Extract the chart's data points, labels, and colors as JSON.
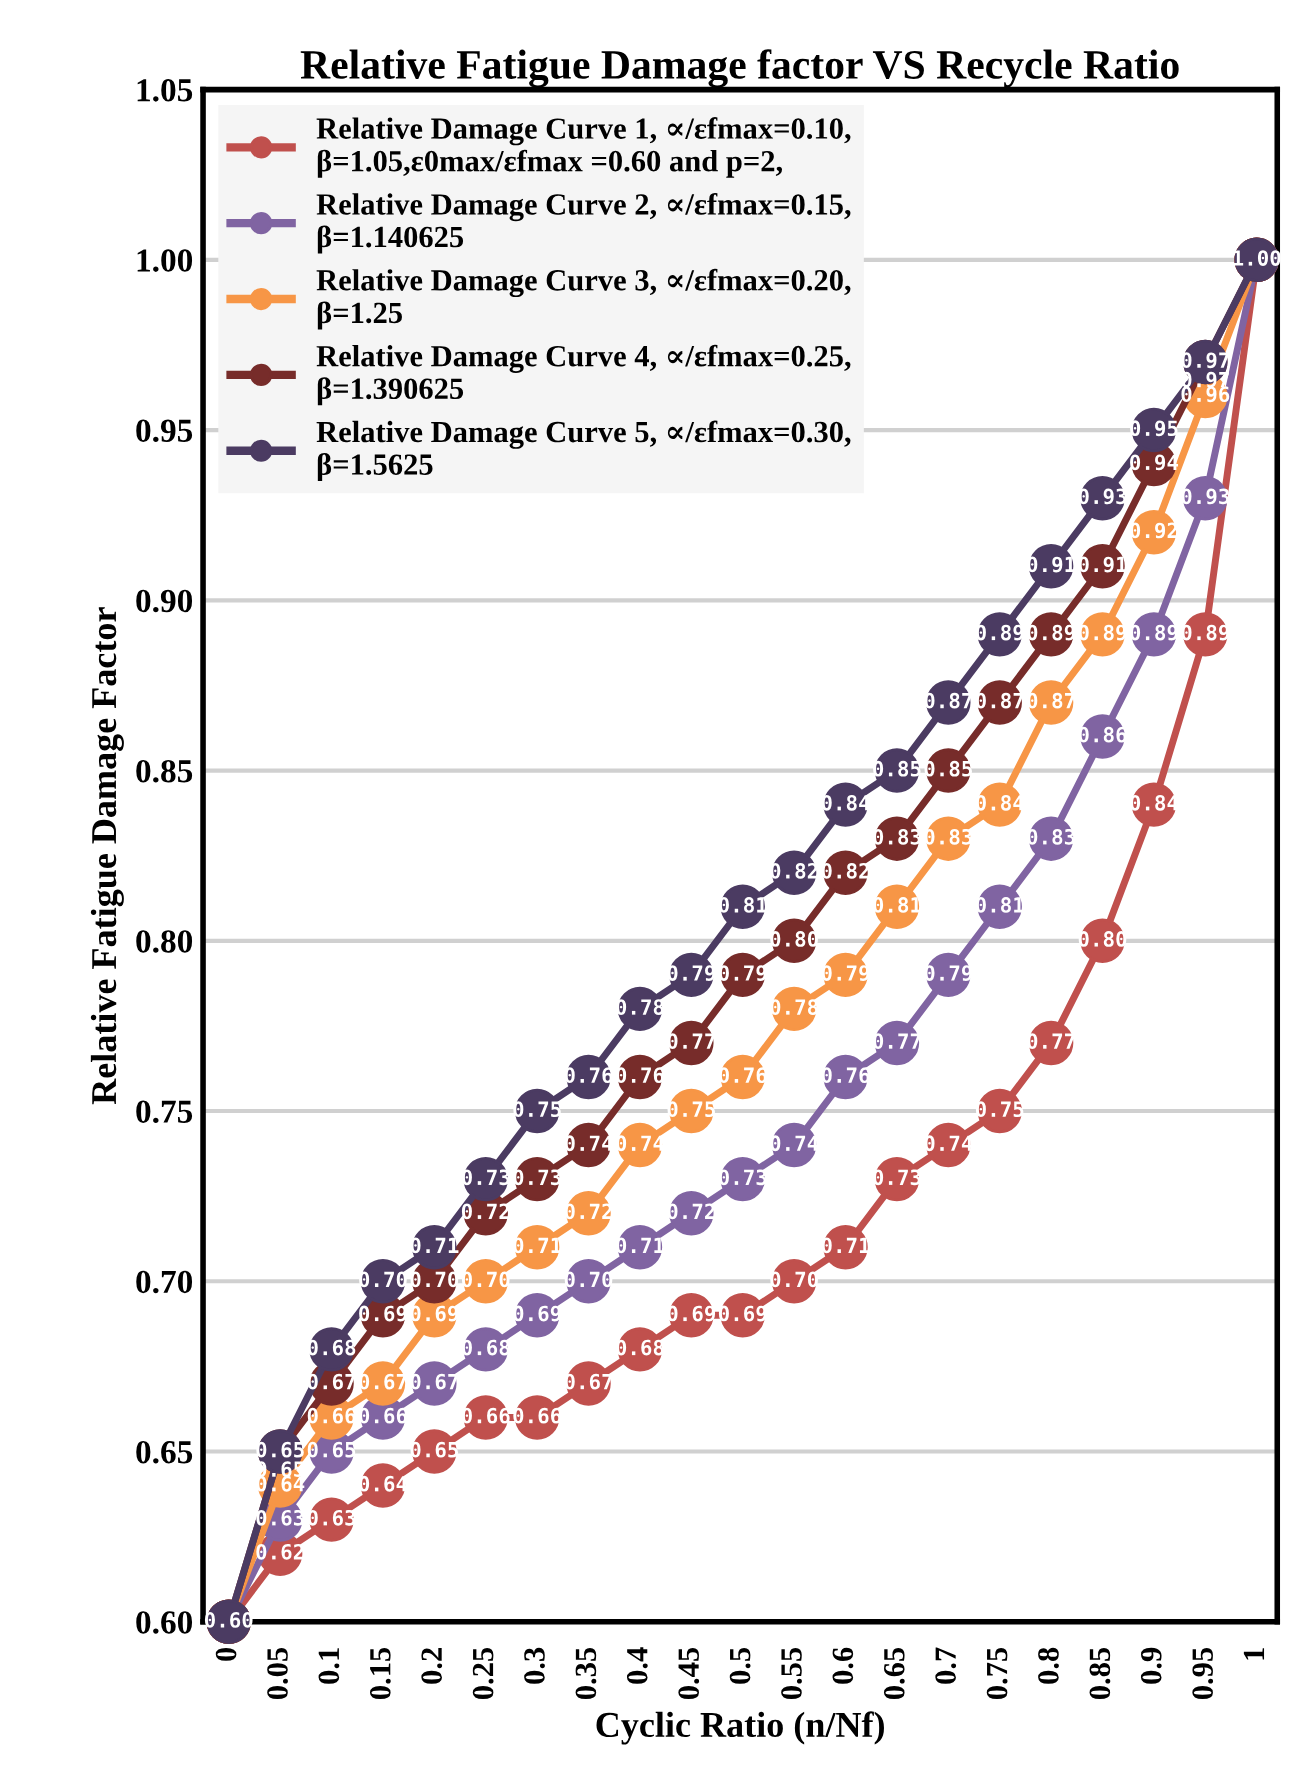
{
  "chart_data": {
    "type": "line",
    "title": "Relative Fatigue Damage factor VS Recycle Ratio",
    "xlabel": "Cyclic Ratio (n/Nf)",
    "ylabel": "Relative Fatigue Damage Factor",
    "categories": [
      "0",
      "0.05",
      "0.1",
      "0.15",
      "0.2",
      "0.25",
      "0.3",
      "0.35",
      "0.4",
      "0.45",
      "0.5",
      "0.55",
      "0.6",
      "0.65",
      "0.7",
      "0.75",
      "0.8",
      "0.85",
      "0.9",
      "0.95",
      "1"
    ],
    "series": [
      {
        "name": "Relative Damage Curve 1, ∝/εfmax=0.10, β=1.05,ε0max/εfmax =0.60 and p=2,",
        "color": "#c0504d",
        "values": [
          0.6,
          0.62,
          0.63,
          0.64,
          0.65,
          0.66,
          0.66,
          0.67,
          0.68,
          0.69,
          0.69,
          0.7,
          0.71,
          0.73,
          0.74,
          0.75,
          0.77,
          0.8,
          0.84,
          0.89,
          1.0
        ],
        "value_labels": [
          null,
          "0.62",
          "0.63",
          "0.64",
          "0.65",
          "0.66",
          "0.66",
          "0.67",
          "0.68",
          "0.69",
          "0.69",
          "0.70",
          "0.71",
          "0.73",
          "0.74",
          "0.75",
          "0.77",
          "0.80",
          "0.84",
          "0.89",
          null
        ]
      },
      {
        "name": "Relative Damage Curve 2, ∝/εfmax=0.15, β=1.140625",
        "color": "#8064a2",
        "values": [
          0.6,
          0.63,
          0.65,
          0.66,
          0.67,
          0.68,
          0.69,
          0.7,
          0.71,
          0.72,
          0.73,
          0.74,
          0.76,
          0.77,
          0.79,
          0.81,
          0.83,
          0.86,
          0.89,
          0.93,
          1.0
        ],
        "value_labels": [
          null,
          "0.63",
          "0.65",
          "0.66",
          "0.67",
          "0.68",
          "0.69",
          "0.70",
          "0.71",
          "0.72",
          "0.73",
          "0.74",
          "0.76",
          "0.77",
          "0.79",
          "0.81",
          "0.83",
          "0.86",
          "0.89",
          "0.93",
          null
        ]
      },
      {
        "name": "Relative Damage Curve 3, ∝/εfmax=0.20, β=1.25",
        "color": "#f79646",
        "values": [
          0.6,
          0.64,
          0.66,
          0.67,
          0.69,
          0.7,
          0.71,
          0.72,
          0.74,
          0.75,
          0.76,
          0.78,
          0.79,
          0.81,
          0.83,
          0.84,
          0.87,
          0.89,
          0.92,
          0.96,
          1.0
        ],
        "value_labels": [
          null,
          "0.64",
          "0.66",
          "0.67",
          "0.69",
          "0.70",
          "0.71",
          "0.72",
          "0.74",
          "0.75",
          "0.76",
          "0.78",
          "0.79",
          "0.81",
          "0.83",
          "0.84",
          "0.87",
          "0.89",
          "0.92",
          "0.96",
          null
        ]
      },
      {
        "name": "Relative Damage Curve 4, ∝/εfmax=0.25, β=1.390625",
        "color": "#772c2a",
        "values": [
          0.6,
          0.65,
          0.67,
          0.69,
          0.7,
          0.72,
          0.73,
          0.74,
          0.76,
          0.77,
          0.79,
          0.8,
          0.82,
          0.83,
          0.85,
          0.87,
          0.89,
          0.91,
          0.94,
          0.97,
          1.0
        ],
        "value_labels": [
          null,
          "0.65",
          "0.67",
          "0.69",
          "0.70",
          "0.72",
          "0.73",
          "0.74",
          "0.76",
          "0.77",
          "0.79",
          "0.80",
          "0.82",
          "0.83",
          "0.85",
          "0.87",
          "0.89",
          "0.91",
          "0.94",
          "0.97",
          null
        ]
      },
      {
        "name": "Relative Damage Curve 5, ∝/εfmax=0.30, β=1.5625",
        "color": "#4b3b62",
        "values": [
          0.6,
          0.65,
          0.68,
          0.7,
          0.71,
          0.73,
          0.75,
          0.76,
          0.78,
          0.79,
          0.81,
          0.82,
          0.84,
          0.85,
          0.87,
          0.89,
          0.91,
          0.93,
          0.95,
          0.97,
          1.0
        ],
        "value_labels": [
          "0.60",
          "0.65",
          "0.68",
          "0.70",
          "0.71",
          "0.73",
          "0.75",
          "0.76",
          "0.78",
          "0.79",
          "0.81",
          "0.82",
          "0.84",
          "0.85",
          "0.87",
          "0.89",
          "0.91",
          "0.93",
          "0.95",
          "0.97",
          "1.00"
        ]
      }
    ],
    "ylim": [
      0.6,
      1.05
    ],
    "yticks": [
      {
        "value": 0.6,
        "label": "0.60"
      },
      {
        "value": 0.65,
        "label": "0.65"
      },
      {
        "value": 0.7,
        "label": "0.70"
      },
      {
        "value": 0.75,
        "label": "0.75"
      },
      {
        "value": 0.8,
        "label": "0.80"
      },
      {
        "value": 0.85,
        "label": "0.85"
      },
      {
        "value": 0.9,
        "label": "0.90"
      },
      {
        "value": 0.95,
        "label": "0.95"
      },
      {
        "value": 1.0,
        "label": "1.00"
      },
      {
        "value": 1.05,
        "label": "1.05"
      }
    ],
    "grid": "y",
    "legend": "top left",
    "marker": "circle",
    "line_style": "solid"
  }
}
